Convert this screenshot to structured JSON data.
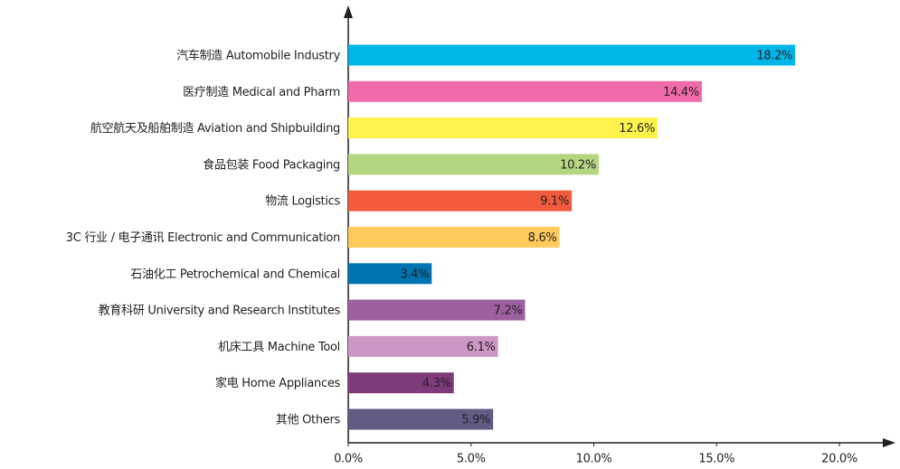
{
  "chart_data": {
    "type": "bar",
    "orientation": "horizontal",
    "categories": [
      "汽车制造 Automobile Industry",
      "医疗制造 Medical and Pharm",
      "航空航天及船舶制造 Aviation and Shipbuilding",
      "食品包装 Food Packaging",
      "物流 Logistics",
      "3C 行业 / 电子通讯 Electronic and Communication",
      "石油化工 Petrochemical and Chemical",
      "教育科研 University and Research Institutes",
      "机床工具 Machine Tool",
      "家电 Home Appliances",
      "其他 Others"
    ],
    "values": [
      18.2,
      14.4,
      12.6,
      10.2,
      9.1,
      8.6,
      3.4,
      7.2,
      6.1,
      4.3,
      5.9
    ],
    "value_labels": [
      "18.2%",
      "14.4%",
      "12.6%",
      "10.2%",
      "9.1%",
      "8.6%",
      "3.4%",
      "7.2%",
      "6.1%",
      "4.3%",
      "5.9%"
    ],
    "colors": [
      "#00b5e8",
      "#f16aa9",
      "#fff24c",
      "#b4d680",
      "#f15a3d",
      "#ffca5c",
      "#0073b1",
      "#9c5f9f",
      "#cd97c5",
      "#7e3b7b",
      "#615c84"
    ],
    "xlim": [
      0,
      20
    ],
    "xticks": [
      {
        "value": 0,
        "label": "0.0%"
      },
      {
        "value": 5,
        "label": "5.0%"
      },
      {
        "value": 10,
        "label": "10.0%"
      },
      {
        "value": 15,
        "label": "15.0%"
      },
      {
        "value": 20,
        "label": "20.0%"
      }
    ]
  }
}
